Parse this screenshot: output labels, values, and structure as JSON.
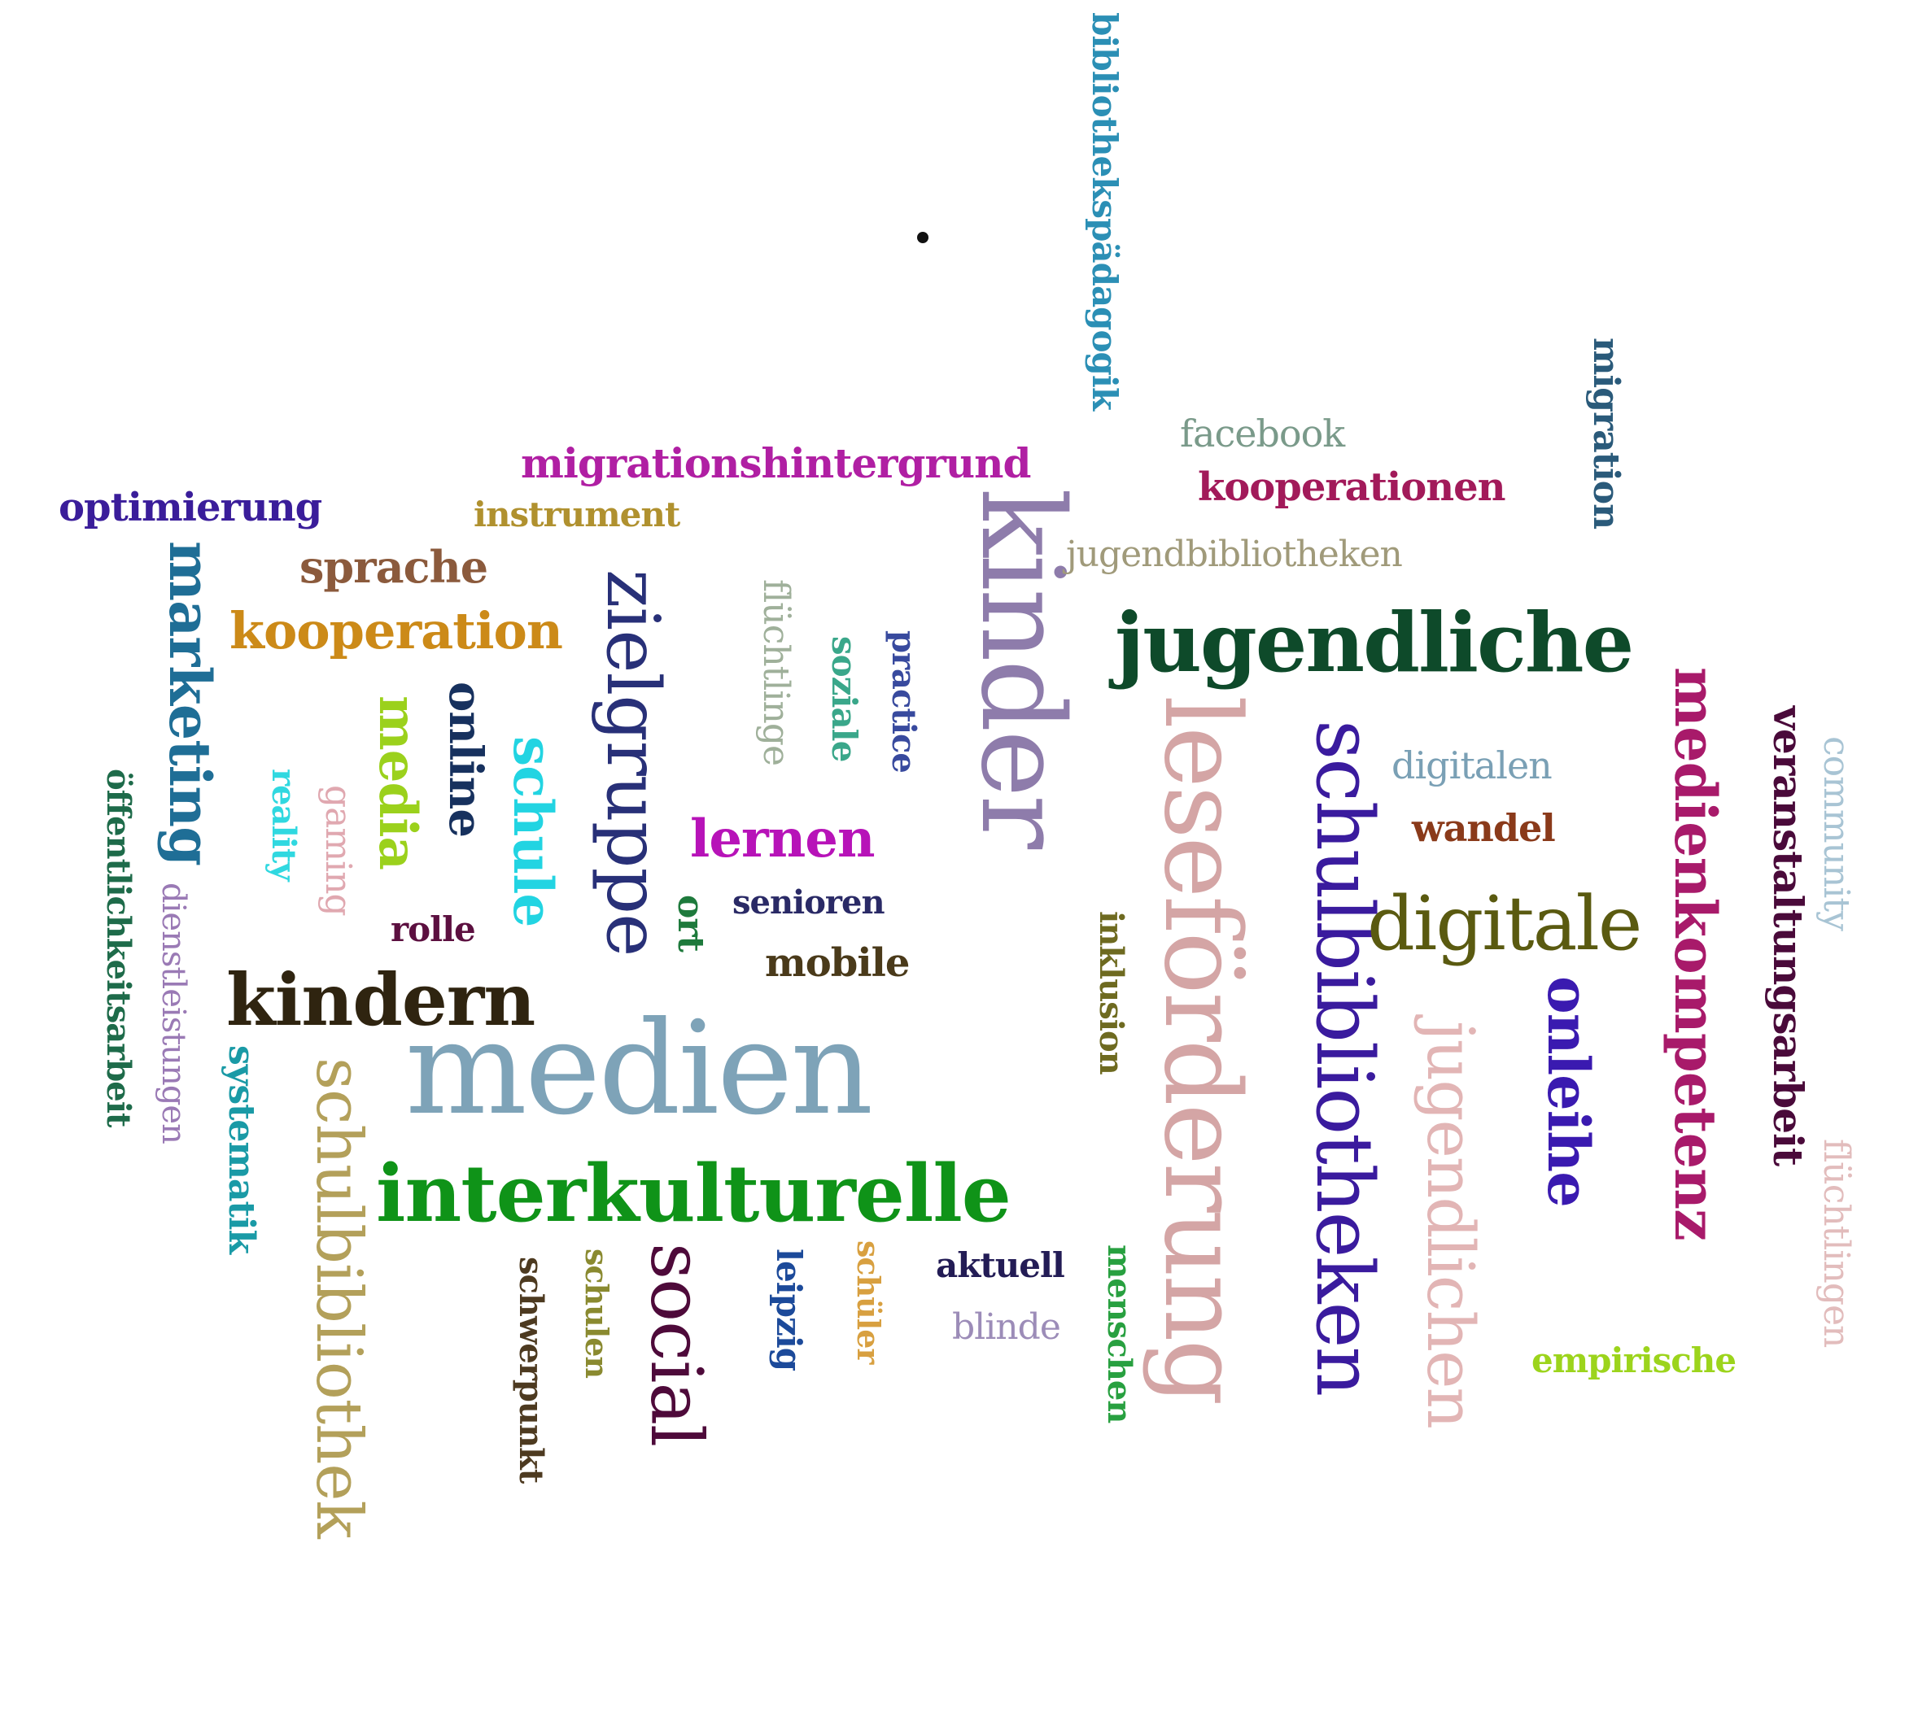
{
  "words": [
    {
      "text": "bibliothekspädagogik",
      "color": "#2b8fb5",
      "vertical": true
    },
    {
      "text": "migrationshintergrund",
      "color": "#b01fa3",
      "vertical": false
    },
    {
      "text": "optimierung",
      "color": "#3a1d9a",
      "vertical": false
    },
    {
      "text": "instrument",
      "color": "#b0912f",
      "vertical": false
    },
    {
      "text": "sprache",
      "color": "#8b5a3c",
      "vertical": false
    },
    {
      "text": "kooperation",
      "color": "#cc8a18",
      "vertical": false
    },
    {
      "text": "marketing",
      "color": "#1f6e96",
      "vertical": true
    },
    {
      "text": "öffentlichkeitsarbeit",
      "color": "#1e6b4a",
      "vertical": true
    },
    {
      "text": "dienstleistungen",
      "color": "#9a7ab5",
      "vertical": true
    },
    {
      "text": "reality",
      "color": "#30d8e0",
      "vertical": true
    },
    {
      "text": "gaming",
      "color": "#e0a8b0",
      "vertical": true
    },
    {
      "text": "media",
      "color": "#9bd11c",
      "vertical": true
    },
    {
      "text": "online",
      "color": "#17315e",
      "vertical": true
    },
    {
      "text": "schule",
      "color": "#22d4e2",
      "vertical": true
    },
    {
      "text": "zielgruppe",
      "color": "#283078",
      "vertical": true
    },
    {
      "text": "flüchtlinge",
      "color": "#9fb09a",
      "vertical": true
    },
    {
      "text": "soziale",
      "color": "#3aa78a",
      "vertical": true
    },
    {
      "text": "practice",
      "color": "#384a9e",
      "vertical": true
    },
    {
      "text": "kinder",
      "color": "#8e7cab",
      "vertical": true
    },
    {
      "text": "lernen",
      "color": "#b713b8",
      "vertical": false
    },
    {
      "text": "rolle",
      "color": "#5c1040",
      "vertical": false
    },
    {
      "text": "ort",
      "color": "#1e7a3c",
      "vertical": true
    },
    {
      "text": "senioren",
      "color": "#2a2a66",
      "vertical": false
    },
    {
      "text": "mobile",
      "color": "#4a3a1a",
      "vertical": false
    },
    {
      "text": "kindern",
      "color": "#2f2410",
      "vertical": false
    },
    {
      "text": "medien",
      "color": "#7ea3b8",
      "vertical": false
    },
    {
      "text": "systematik",
      "color": "#1a9aa6",
      "vertical": true
    },
    {
      "text": "schulbibliothek",
      "color": "#b3a05a",
      "vertical": true
    },
    {
      "text": "interkulturelle",
      "color": "#0f9318",
      "vertical": false
    },
    {
      "text": "schwerpunkt",
      "color": "#4d3a20",
      "vertical": true
    },
    {
      "text": "schulen",
      "color": "#8a8a30",
      "vertical": true
    },
    {
      "text": "social",
      "color": "#4e0a3a",
      "vertical": true
    },
    {
      "text": "leipzig",
      "color": "#1c4a9a",
      "vertical": true
    },
    {
      "text": "schüler",
      "color": "#d8a040",
      "vertical": true
    },
    {
      "text": "aktuell",
      "color": "#231c55",
      "vertical": false
    },
    {
      "text": "blinde",
      "color": "#9c8cb8",
      "vertical": false
    },
    {
      "text": "menschen",
      "color": "#28a040",
      "vertical": true
    },
    {
      "text": "inklusion",
      "color": "#6e6a20",
      "vertical": true
    },
    {
      "text": "leseförderung",
      "color": "#d4a5a5",
      "vertical": true
    },
    {
      "text": "schulbibliotheken",
      "color": "#3a1b9e",
      "vertical": true
    },
    {
      "text": "jugendlichen",
      "color": "#e2b5b5",
      "vertical": true
    },
    {
      "text": "jugendliche",
      "color": "#0e4a2a",
      "vertical": false
    },
    {
      "text": "facebook",
      "color": "#7a9a8a",
      "vertical": false
    },
    {
      "text": "kooperationen",
      "color": "#a21a5a",
      "vertical": false
    },
    {
      "text": "jugendbibliotheken",
      "color": "#a09a7a",
      "vertical": false
    },
    {
      "text": "migration",
      "color": "#2a5a7a",
      "vertical": true
    },
    {
      "text": "digitalen",
      "color": "#7aa0b5",
      "vertical": false
    },
    {
      "text": "wandel",
      "color": "#8a3a1a",
      "vertical": false
    },
    {
      "text": "digitale",
      "color": "#5a5a10",
      "vertical": false
    },
    {
      "text": "onleihe",
      "color": "#3a1ab0",
      "vertical": true
    },
    {
      "text": "medienkompetenz",
      "color": "#a81a6a",
      "vertical": true
    },
    {
      "text": "veranstaltungsarbeit",
      "color": "#4a0a3a",
      "vertical": true
    },
    {
      "text": "community",
      "color": "#a8c4d4",
      "vertical": true
    },
    {
      "text": "flüchtlingen",
      "color": "#e2bcbc",
      "vertical": true
    },
    {
      "text": "empirische",
      "color": "#9cd41c",
      "vertical": false
    }
  ]
}
